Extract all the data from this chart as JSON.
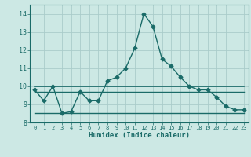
{
  "xlabel": "Humidex (Indice chaleur)",
  "xlim": [
    -0.5,
    23.5
  ],
  "ylim": [
    8.0,
    14.5
  ],
  "yticks": [
    8,
    9,
    10,
    11,
    12,
    13,
    14
  ],
  "xticks": [
    0,
    1,
    2,
    3,
    4,
    5,
    6,
    7,
    8,
    9,
    10,
    11,
    12,
    13,
    14,
    15,
    16,
    17,
    18,
    19,
    20,
    21,
    22,
    23
  ],
  "bg_color": "#cce8e4",
  "grid_color": "#aaccca",
  "line_color": "#1a6b68",
  "series": [
    {
      "x": [
        0,
        1,
        2,
        3,
        4,
        5,
        6,
        7,
        8,
        9,
        10,
        11,
        12,
        13,
        14,
        15,
        16,
        17,
        18,
        19,
        20,
        21,
        22,
        23
      ],
      "y": [
        9.8,
        9.2,
        10.0,
        8.5,
        8.6,
        9.7,
        9.2,
        9.2,
        10.3,
        10.5,
        11.0,
        12.1,
        14.0,
        13.3,
        11.5,
        11.1,
        10.5,
        10.0,
        9.8,
        9.8,
        9.4,
        8.9,
        8.7,
        8.7
      ],
      "marker": "D",
      "markersize": 2.5,
      "linewidth": 1.0
    },
    {
      "x": [
        0,
        23
      ],
      "y": [
        10.0,
        10.0
      ],
      "marker": null,
      "linewidth": 1.2
    },
    {
      "x": [
        0,
        23
      ],
      "y": [
        9.7,
        9.7
      ],
      "marker": null,
      "linewidth": 1.0
    },
    {
      "x": [
        0,
        23
      ],
      "y": [
        8.5,
        8.5
      ],
      "marker": null,
      "linewidth": 1.0
    }
  ]
}
